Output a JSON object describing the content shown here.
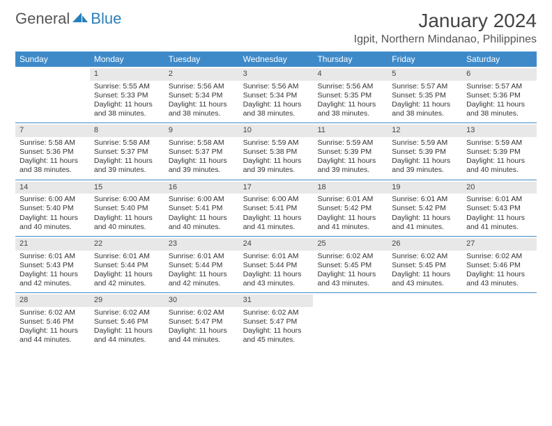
{
  "logo": {
    "part1": "General",
    "part2": "Blue"
  },
  "title": "January 2024",
  "location": "Igpit, Northern Mindanao, Philippines",
  "colors": {
    "header_bg": "#3e8ac9",
    "header_text": "#ffffff",
    "week_divider": "#3e8ac9",
    "daynum_bg": "#e8e8e8",
    "body_text": "#333333",
    "logo_gray": "#555555",
    "logo_blue": "#2a7fba",
    "background": "#ffffff"
  },
  "typography": {
    "month_title_fontsize": 28,
    "location_fontsize": 16,
    "day_header_fontsize": 12,
    "cell_fontsize": 10.5,
    "logo_fontsize": 22
  },
  "day_headers": [
    "Sunday",
    "Monday",
    "Tuesday",
    "Wednesday",
    "Thursday",
    "Friday",
    "Saturday"
  ],
  "weeks": [
    [
      null,
      {
        "n": "1",
        "sr": "Sunrise: 5:55 AM",
        "ss": "Sunset: 5:33 PM",
        "dl": "Daylight: 11 hours and 38 minutes."
      },
      {
        "n": "2",
        "sr": "Sunrise: 5:56 AM",
        "ss": "Sunset: 5:34 PM",
        "dl": "Daylight: 11 hours and 38 minutes."
      },
      {
        "n": "3",
        "sr": "Sunrise: 5:56 AM",
        "ss": "Sunset: 5:34 PM",
        "dl": "Daylight: 11 hours and 38 minutes."
      },
      {
        "n": "4",
        "sr": "Sunrise: 5:56 AM",
        "ss": "Sunset: 5:35 PM",
        "dl": "Daylight: 11 hours and 38 minutes."
      },
      {
        "n": "5",
        "sr": "Sunrise: 5:57 AM",
        "ss": "Sunset: 5:35 PM",
        "dl": "Daylight: 11 hours and 38 minutes."
      },
      {
        "n": "6",
        "sr": "Sunrise: 5:57 AM",
        "ss": "Sunset: 5:36 PM",
        "dl": "Daylight: 11 hours and 38 minutes."
      }
    ],
    [
      {
        "n": "7",
        "sr": "Sunrise: 5:58 AM",
        "ss": "Sunset: 5:36 PM",
        "dl": "Daylight: 11 hours and 38 minutes."
      },
      {
        "n": "8",
        "sr": "Sunrise: 5:58 AM",
        "ss": "Sunset: 5:37 PM",
        "dl": "Daylight: 11 hours and 39 minutes."
      },
      {
        "n": "9",
        "sr": "Sunrise: 5:58 AM",
        "ss": "Sunset: 5:37 PM",
        "dl": "Daylight: 11 hours and 39 minutes."
      },
      {
        "n": "10",
        "sr": "Sunrise: 5:59 AM",
        "ss": "Sunset: 5:38 PM",
        "dl": "Daylight: 11 hours and 39 minutes."
      },
      {
        "n": "11",
        "sr": "Sunrise: 5:59 AM",
        "ss": "Sunset: 5:39 PM",
        "dl": "Daylight: 11 hours and 39 minutes."
      },
      {
        "n": "12",
        "sr": "Sunrise: 5:59 AM",
        "ss": "Sunset: 5:39 PM",
        "dl": "Daylight: 11 hours and 39 minutes."
      },
      {
        "n": "13",
        "sr": "Sunrise: 5:59 AM",
        "ss": "Sunset: 5:39 PM",
        "dl": "Daylight: 11 hours and 40 minutes."
      }
    ],
    [
      {
        "n": "14",
        "sr": "Sunrise: 6:00 AM",
        "ss": "Sunset: 5:40 PM",
        "dl": "Daylight: 11 hours and 40 minutes."
      },
      {
        "n": "15",
        "sr": "Sunrise: 6:00 AM",
        "ss": "Sunset: 5:40 PM",
        "dl": "Daylight: 11 hours and 40 minutes."
      },
      {
        "n": "16",
        "sr": "Sunrise: 6:00 AM",
        "ss": "Sunset: 5:41 PM",
        "dl": "Daylight: 11 hours and 40 minutes."
      },
      {
        "n": "17",
        "sr": "Sunrise: 6:00 AM",
        "ss": "Sunset: 5:41 PM",
        "dl": "Daylight: 11 hours and 41 minutes."
      },
      {
        "n": "18",
        "sr": "Sunrise: 6:01 AM",
        "ss": "Sunset: 5:42 PM",
        "dl": "Daylight: 11 hours and 41 minutes."
      },
      {
        "n": "19",
        "sr": "Sunrise: 6:01 AM",
        "ss": "Sunset: 5:42 PM",
        "dl": "Daylight: 11 hours and 41 minutes."
      },
      {
        "n": "20",
        "sr": "Sunrise: 6:01 AM",
        "ss": "Sunset: 5:43 PM",
        "dl": "Daylight: 11 hours and 41 minutes."
      }
    ],
    [
      {
        "n": "21",
        "sr": "Sunrise: 6:01 AM",
        "ss": "Sunset: 5:43 PM",
        "dl": "Daylight: 11 hours and 42 minutes."
      },
      {
        "n": "22",
        "sr": "Sunrise: 6:01 AM",
        "ss": "Sunset: 5:44 PM",
        "dl": "Daylight: 11 hours and 42 minutes."
      },
      {
        "n": "23",
        "sr": "Sunrise: 6:01 AM",
        "ss": "Sunset: 5:44 PM",
        "dl": "Daylight: 11 hours and 42 minutes."
      },
      {
        "n": "24",
        "sr": "Sunrise: 6:01 AM",
        "ss": "Sunset: 5:44 PM",
        "dl": "Daylight: 11 hours and 43 minutes."
      },
      {
        "n": "25",
        "sr": "Sunrise: 6:02 AM",
        "ss": "Sunset: 5:45 PM",
        "dl": "Daylight: 11 hours and 43 minutes."
      },
      {
        "n": "26",
        "sr": "Sunrise: 6:02 AM",
        "ss": "Sunset: 5:45 PM",
        "dl": "Daylight: 11 hours and 43 minutes."
      },
      {
        "n": "27",
        "sr": "Sunrise: 6:02 AM",
        "ss": "Sunset: 5:46 PM",
        "dl": "Daylight: 11 hours and 43 minutes."
      }
    ],
    [
      {
        "n": "28",
        "sr": "Sunrise: 6:02 AM",
        "ss": "Sunset: 5:46 PM",
        "dl": "Daylight: 11 hours and 44 minutes."
      },
      {
        "n": "29",
        "sr": "Sunrise: 6:02 AM",
        "ss": "Sunset: 5:46 PM",
        "dl": "Daylight: 11 hours and 44 minutes."
      },
      {
        "n": "30",
        "sr": "Sunrise: 6:02 AM",
        "ss": "Sunset: 5:47 PM",
        "dl": "Daylight: 11 hours and 44 minutes."
      },
      {
        "n": "31",
        "sr": "Sunrise: 6:02 AM",
        "ss": "Sunset: 5:47 PM",
        "dl": "Daylight: 11 hours and 45 minutes."
      },
      null,
      null,
      null
    ]
  ]
}
